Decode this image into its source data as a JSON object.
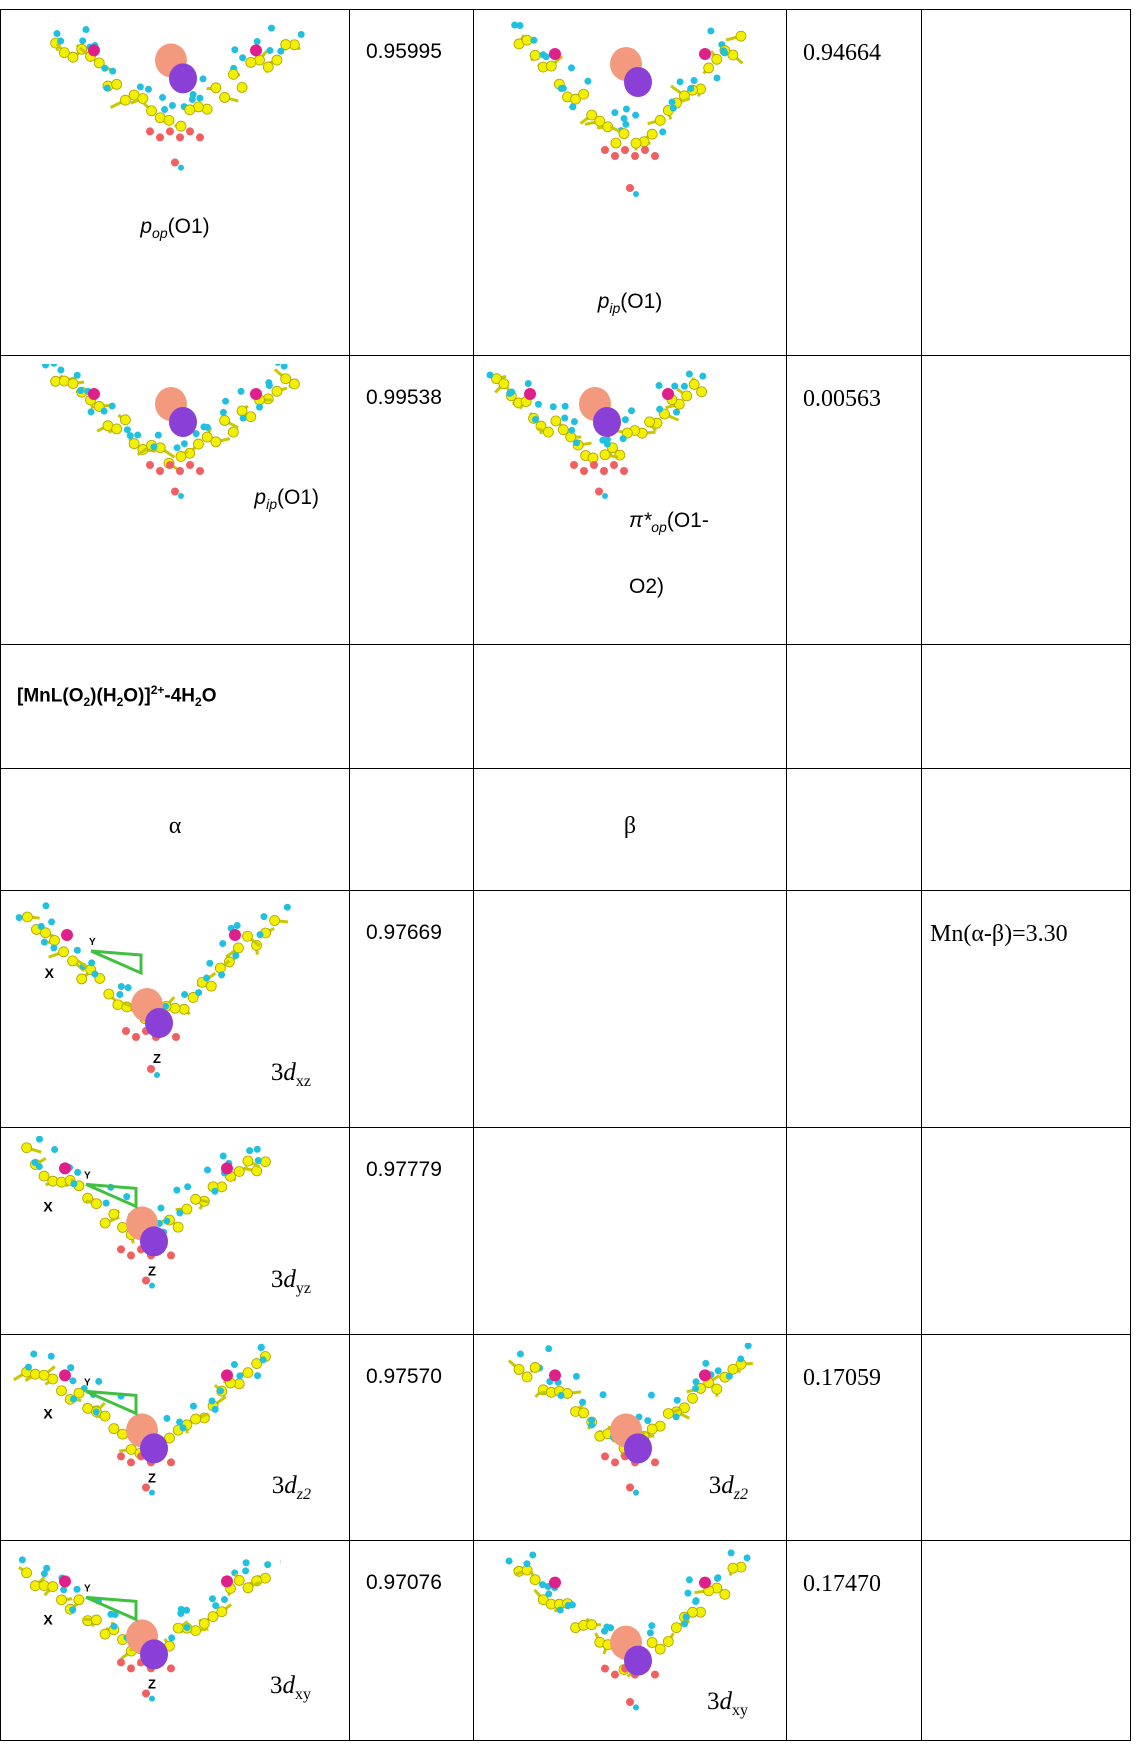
{
  "table": {
    "rows": [
      [
        {
          "base": "p",
          "sub": "op",
          "rest": "(O1)"
        },
        "0.95995",
        {
          "base": "p",
          "sub": "ip",
          "rest": "(O1)"
        },
        "0.94664",
        ""
      ],
      [
        {
          "base": "p",
          "sub": "ip",
          "rest": "(O1)"
        },
        "0.99538",
        {
          "base": "π*",
          "sub": "op",
          "rest": "(O1-O2)"
        },
        "0.00563",
        ""
      ],
      [
        [
          "[MnL(O",
          "2",
          ")(H",
          "2",
          "O)]",
          "2+",
          "-4H",
          "2",
          "O"
        ],
        "",
        "",
        "",
        ""
      ],
      [
        "α",
        "",
        "β",
        "",
        ""
      ],
      [
        {
          "num": "3",
          "base": "d",
          "sub": "xz"
        },
        "0.97669",
        "",
        "",
        "Mn(α-β)=3.30"
      ],
      [
        {
          "num": "3",
          "base": "d",
          "sub": "yz"
        },
        "0.97779",
        "",
        "",
        ""
      ],
      [
        {
          "num": "3",
          "base": "d",
          "sub": "z2"
        },
        "0.97570",
        {
          "num": "3",
          "base": "d",
          "sub": "z2"
        },
        "0.17059",
        ""
      ],
      [
        {
          "num": "3",
          "base": "d",
          "sub": "xy"
        },
        "0.97076",
        {
          "num": "3",
          "base": "d",
          "sub": "xy"
        },
        "0.17470",
        ""
      ]
    ],
    "axis_labels": {
      "x": "X",
      "y": "Y",
      "z": "Z"
    }
  }
}
